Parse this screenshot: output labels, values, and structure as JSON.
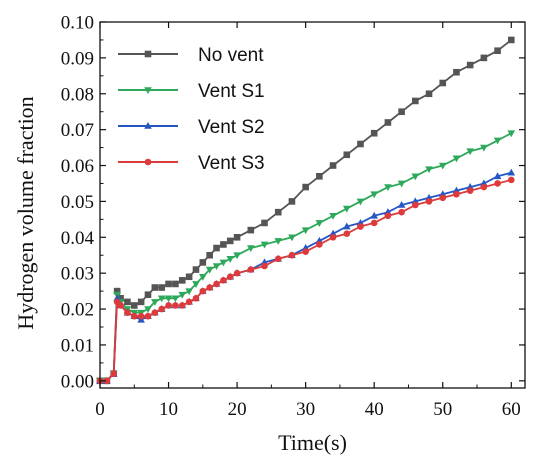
{
  "chart_data": {
    "type": "line",
    "xlabel": "Time(s)",
    "ylabel": "Hydrogen volume fraction",
    "xlim": [
      0,
      62
    ],
    "ylim": [
      -0.002,
      0.1
    ],
    "xticks": [
      0,
      10,
      20,
      30,
      40,
      50,
      60
    ],
    "yticks": [
      0.0,
      0.01,
      0.02,
      0.03,
      0.04,
      0.05,
      0.06,
      0.07,
      0.08,
      0.09,
      0.1
    ],
    "xtick_labels": [
      "0",
      "10",
      "20",
      "30",
      "40",
      "50",
      "60"
    ],
    "ytick_labels": [
      "0.00",
      "0.01",
      "0.02",
      "0.03",
      "0.04",
      "0.05",
      "0.06",
      "0.07",
      "0.08",
      "0.09",
      "0.10"
    ],
    "legend_position": "top-left",
    "grid": false,
    "series": [
      {
        "name": "No vent",
        "color": "#555555",
        "marker": "square",
        "x": [
          0,
          1,
          2,
          2.5,
          3,
          4,
          5,
          6,
          7,
          8,
          9,
          10,
          11,
          12,
          13,
          14,
          15,
          16,
          17,
          18,
          19,
          20,
          22,
          24,
          26,
          28,
          30,
          32,
          34,
          36,
          38,
          40,
          42,
          44,
          46,
          48,
          50,
          52,
          54,
          56,
          58,
          60
        ],
        "y": [
          0.0,
          0.0,
          0.002,
          0.025,
          0.023,
          0.022,
          0.021,
          0.022,
          0.024,
          0.026,
          0.026,
          0.027,
          0.027,
          0.028,
          0.029,
          0.031,
          0.033,
          0.035,
          0.037,
          0.038,
          0.039,
          0.04,
          0.042,
          0.044,
          0.047,
          0.05,
          0.054,
          0.057,
          0.06,
          0.063,
          0.066,
          0.069,
          0.072,
          0.075,
          0.078,
          0.08,
          0.083,
          0.086,
          0.088,
          0.09,
          0.092,
          0.095
        ]
      },
      {
        "name": "Vent S1",
        "color": "#2ea85a",
        "marker": "triangle-down",
        "x": [
          0,
          1,
          2,
          2.5,
          3,
          4,
          5,
          6,
          7,
          8,
          9,
          10,
          11,
          12,
          13,
          14,
          15,
          16,
          17,
          18,
          19,
          20,
          22,
          24,
          26,
          28,
          30,
          32,
          34,
          36,
          38,
          40,
          42,
          44,
          46,
          48,
          50,
          52,
          54,
          56,
          58,
          60
        ],
        "y": [
          0.0,
          0.0,
          0.002,
          0.024,
          0.022,
          0.02,
          0.019,
          0.019,
          0.02,
          0.022,
          0.023,
          0.023,
          0.023,
          0.024,
          0.025,
          0.027,
          0.029,
          0.031,
          0.032,
          0.033,
          0.034,
          0.035,
          0.037,
          0.038,
          0.039,
          0.04,
          0.042,
          0.044,
          0.046,
          0.048,
          0.05,
          0.052,
          0.054,
          0.055,
          0.057,
          0.059,
          0.06,
          0.062,
          0.064,
          0.065,
          0.067,
          0.069
        ]
      },
      {
        "name": "Vent S2",
        "color": "#2457c5",
        "marker": "triangle-up",
        "x": [
          0,
          1,
          2,
          2.5,
          3,
          4,
          5,
          6,
          7,
          8,
          9,
          10,
          11,
          12,
          13,
          14,
          15,
          16,
          17,
          18,
          19,
          20,
          22,
          24,
          26,
          28,
          30,
          32,
          34,
          36,
          38,
          40,
          42,
          44,
          46,
          48,
          50,
          52,
          54,
          56,
          58,
          60
        ],
        "y": [
          0.0,
          0.0,
          0.002,
          0.023,
          0.021,
          0.019,
          0.018,
          0.017,
          0.018,
          0.019,
          0.02,
          0.021,
          0.021,
          0.021,
          0.022,
          0.023,
          0.025,
          0.026,
          0.027,
          0.028,
          0.029,
          0.03,
          0.031,
          0.033,
          0.034,
          0.035,
          0.037,
          0.039,
          0.041,
          0.043,
          0.044,
          0.046,
          0.047,
          0.049,
          0.05,
          0.051,
          0.052,
          0.053,
          0.054,
          0.055,
          0.057,
          0.058
        ]
      },
      {
        "name": "Vent S3",
        "color": "#dd3b3b",
        "marker": "circle",
        "x": [
          0,
          1,
          2,
          2.5,
          3,
          4,
          5,
          6,
          7,
          8,
          9,
          10,
          11,
          12,
          13,
          14,
          15,
          16,
          17,
          18,
          19,
          20,
          22,
          24,
          26,
          28,
          30,
          32,
          34,
          36,
          38,
          40,
          42,
          44,
          46,
          48,
          50,
          52,
          54,
          56,
          58,
          60
        ],
        "y": [
          0.0,
          0.0,
          0.002,
          0.022,
          0.021,
          0.019,
          0.018,
          0.018,
          0.018,
          0.019,
          0.02,
          0.021,
          0.021,
          0.021,
          0.022,
          0.023,
          0.025,
          0.026,
          0.027,
          0.028,
          0.029,
          0.03,
          0.031,
          0.032,
          0.034,
          0.035,
          0.036,
          0.038,
          0.04,
          0.041,
          0.043,
          0.044,
          0.046,
          0.047,
          0.049,
          0.05,
          0.051,
          0.052,
          0.053,
          0.054,
          0.055,
          0.056
        ]
      }
    ]
  }
}
